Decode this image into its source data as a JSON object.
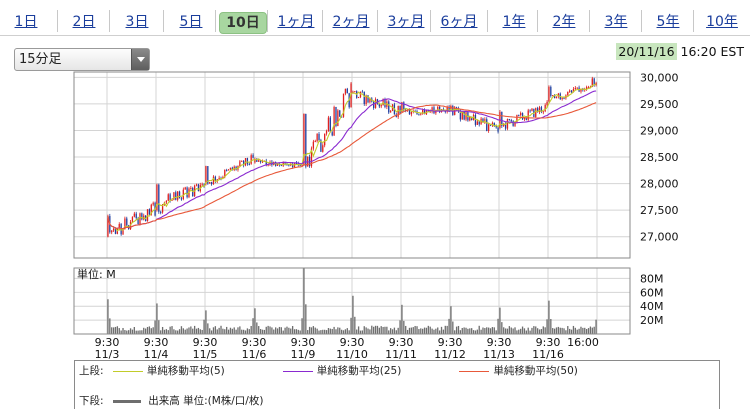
{
  "tabs": [
    {
      "label": "1日"
    },
    {
      "label": "2日"
    },
    {
      "label": "3日"
    },
    {
      "label": "5日"
    },
    {
      "label": "10日",
      "active": true
    },
    {
      "label": "1ヶ月"
    },
    {
      "label": "2ヶ月"
    },
    {
      "label": "3ヶ月"
    },
    {
      "label": "6ヶ月"
    },
    {
      "label": "1年"
    },
    {
      "label": "2年"
    },
    {
      "label": "3年"
    },
    {
      "label": "5年"
    },
    {
      "label": "10年"
    }
  ],
  "interval_select": {
    "value": "15分足"
  },
  "timestamp": {
    "date": "20/11/16",
    "time": "16:20 EST"
  },
  "colors": {
    "up": "#e02020",
    "down": "#1f3fa0",
    "ma5": "#c2cc2a",
    "ma25": "#8a2ad0",
    "ma50": "#e8593a",
    "volume": "#6e6e6e",
    "accent": "#a8d6a0"
  },
  "chart_data": [
    {
      "type": "candlestick",
      "title": "",
      "ylim": [
        26600,
        30100
      ],
      "y_ticks": [
        "30,000",
        "29,500",
        "29,000",
        "28,500",
        "28,000",
        "27,500",
        "27,000"
      ],
      "y_tick_values": [
        30000,
        29500,
        29000,
        28500,
        28000,
        27500,
        27000
      ],
      "grid": true,
      "sessions": [
        {
          "date": "11/3",
          "open": 27000,
          "close": 27550,
          "low": 26750,
          "high": 27650
        },
        {
          "date": "11/4",
          "open": 27500,
          "close": 28000,
          "low": 27350,
          "high": 28300
        },
        {
          "date": "11/5",
          "open": 28000,
          "close": 28450,
          "low": 27950,
          "high": 28550
        },
        {
          "date": "11/6",
          "open": 28400,
          "close": 28350,
          "low": 28200,
          "high": 28500
        },
        {
          "date": "11/9",
          "open": 28350,
          "close": 29700,
          "low": 28300,
          "high": 29950
        },
        {
          "date": "11/10",
          "open": 29700,
          "close": 29350,
          "low": 29050,
          "high": 29750
        },
        {
          "date": "11/11",
          "open": 29350,
          "close": 29400,
          "low": 29250,
          "high": 29650
        },
        {
          "date": "11/12",
          "open": 29400,
          "close": 29000,
          "low": 28900,
          "high": 29500
        },
        {
          "date": "11/13",
          "open": 29050,
          "close": 29450,
          "low": 28950,
          "high": 29550
        },
        {
          "date": "11/16",
          "open": 29550,
          "close": 29950,
          "low": 29500,
          "high": 30000
        }
      ],
      "moving_averages": [
        {
          "name": "単純移動平均(5)",
          "color": "#c2cc2a"
        },
        {
          "name": "単純移動平均(25)",
          "color": "#8a2ad0"
        },
        {
          "name": "単純移動平均(50)",
          "color": "#e8593a"
        }
      ]
    },
    {
      "type": "bar",
      "label": "単位: M",
      "ylim": [
        0,
        95
      ],
      "y_ticks": [
        "80M",
        "60M",
        "40M",
        "20M"
      ],
      "y_tick_values": [
        80,
        60,
        40,
        20
      ],
      "session_open_volume": [
        50,
        44,
        34,
        37,
        95,
        55,
        42,
        40,
        38,
        48
      ],
      "typical_volume": 8
    }
  ],
  "x_axis": {
    "times": [
      "9:30",
      "9:30",
      "9:30",
      "9:30",
      "9:30",
      "9:30",
      "9:30",
      "9:30",
      "9:30",
      "9:30",
      "16:00"
    ],
    "dates": [
      "11/3",
      "11/4",
      "11/5",
      "11/6",
      "11/9",
      "11/10",
      "11/11",
      "11/12",
      "11/13",
      "11/16",
      ""
    ]
  },
  "legend": {
    "upper_label": "上段:",
    "lower_label": "下段:",
    "volume_label": "出来高 単位:(M株/口/枚)",
    "items": [
      {
        "name": "単純移動平均(5)",
        "color": "#c2cc2a"
      },
      {
        "name": "単純移動平均(25)",
        "color": "#8a2ad0"
      },
      {
        "name": "単純移動平均(50)",
        "color": "#e8593a"
      }
    ]
  }
}
